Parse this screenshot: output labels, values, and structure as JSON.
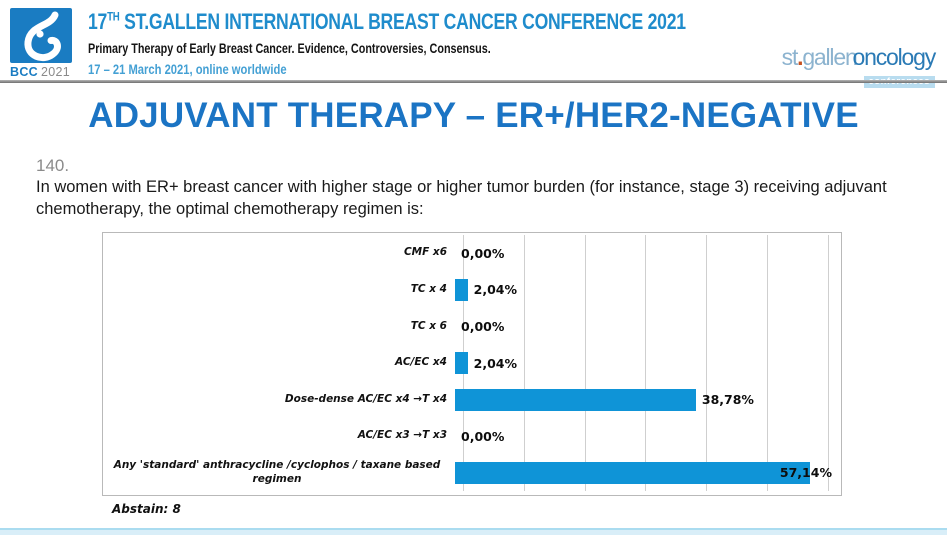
{
  "header": {
    "logo_caption_bcc": "BCC",
    "logo_caption_year": "2021",
    "conference_prefix": "17",
    "conference_sup": "TH",
    "conference_rest": " ST.GALLEN INTERNATIONAL BREAST CANCER CONFERENCE 2021",
    "subtitle": "Primary Therapy of Early Breast Cancer. Evidence, Controversies, Consensus.",
    "dates": "17 – 21 March 2021, online worldwide",
    "brand": {
      "part1": "st",
      "dot": ".",
      "part2": "gallen",
      "part3": "oncology",
      "badge": "conferences"
    }
  },
  "slide": {
    "title": "ADJUVANT THERAPY – ER+/HER2-NEGATIVE",
    "question_number": "140.",
    "question_text": "In women with ER+ breast cancer with higher stage or higher  tumor burden (for instance, stage 3) receiving adjuvant chemotherapy, the optimal chemotherapy regimen is:",
    "abstain": "Abstain: 8"
  },
  "chart_data": {
    "type": "bar",
    "orientation": "horizontal",
    "title": "",
    "categories": [
      "CMF x6",
      "TC x 4",
      "TC x 6",
      "AC/EC  x4",
      "Dose-dense AC/EC x4 →T x4",
      "AC/EC x3 →T x3",
      "Any 'standard' anthracycline /cyclophos / taxane based\nregimen"
    ],
    "values": [
      0.0,
      2.04,
      0.0,
      2.04,
      38.78,
      0.0,
      57.14
    ],
    "value_labels": [
      "0,00%",
      "2,04%",
      "0,00%",
      "2,04%",
      "38,78%",
      "0,00%",
      "57,14%"
    ],
    "xlim": [
      0,
      61.5
    ],
    "gridline_step": 10,
    "grid": true,
    "legend": false,
    "bar_color": "#0f94d7"
  },
  "colors": {
    "title_blue": "#1b74c4",
    "header_blue": "#1f8ccc",
    "dates_blue": "#44a0d4",
    "bar_blue": "#0f94d7",
    "logo_square_blue": "#1a7cc2",
    "brand_light_blue": "#8cb3cf",
    "brand_dark_blue": "#2a7ab5",
    "brand_dot_red": "#c7511f",
    "footer_band_blue": "#d9eef8",
    "question_number_gray": "#8b8b8b"
  }
}
